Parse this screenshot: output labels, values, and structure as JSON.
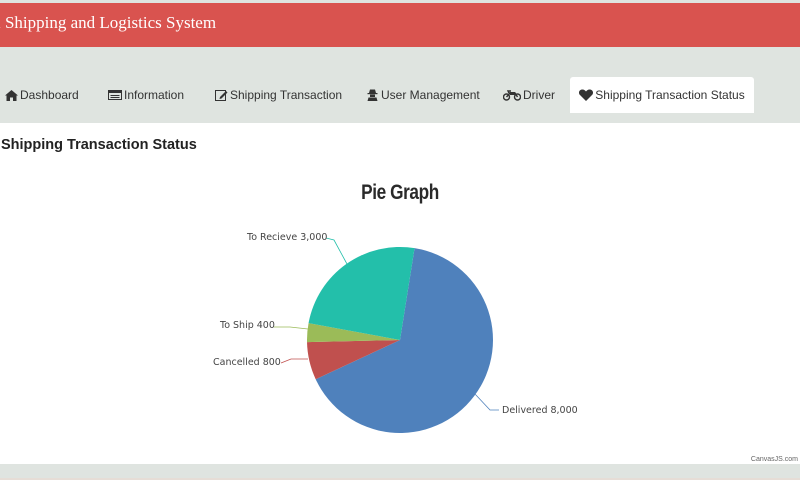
{
  "header": {
    "title": "l Shipping and Logistics System"
  },
  "nav": {
    "tabs": [
      {
        "label": "Dashboard",
        "icon": "home-icon"
      },
      {
        "label": "Information",
        "icon": "card-icon"
      },
      {
        "label": "Shipping Transaction",
        "icon": "edit-icon"
      },
      {
        "label": "User Management",
        "icon": "user-secret-icon"
      },
      {
        "label": "Driver",
        "icon": "motorcycle-icon"
      },
      {
        "label": "Shipping Transaction Status",
        "icon": "heart-icon",
        "active": true
      }
    ]
  },
  "main": {
    "page_title": "Shipping Transaction Status",
    "credit": "CanvasJS.com"
  },
  "colors": {
    "header": "#d9534f",
    "nav_bg": "#dfe4e0",
    "delivered": "#4f81bc",
    "cancelled": "#c0504e",
    "to_ship": "#9bbb58",
    "to_recieve": "#23bfaa"
  },
  "chart_data": {
    "type": "pie",
    "title": "Pie Graph",
    "categories": [
      "Delivered",
      "Cancelled",
      "To Ship",
      "To Recieve"
    ],
    "values": [
      8000,
      800,
      400,
      3000
    ],
    "labels": [
      "Delivered 8,000",
      "Cancelled 800",
      "To Ship 400",
      "To Recieve 3,000"
    ],
    "colors": [
      "#4f81bc",
      "#c0504e",
      "#9bbb58",
      "#23bfaa"
    ],
    "legend": "none",
    "index_labels": "outside with connector lines"
  }
}
